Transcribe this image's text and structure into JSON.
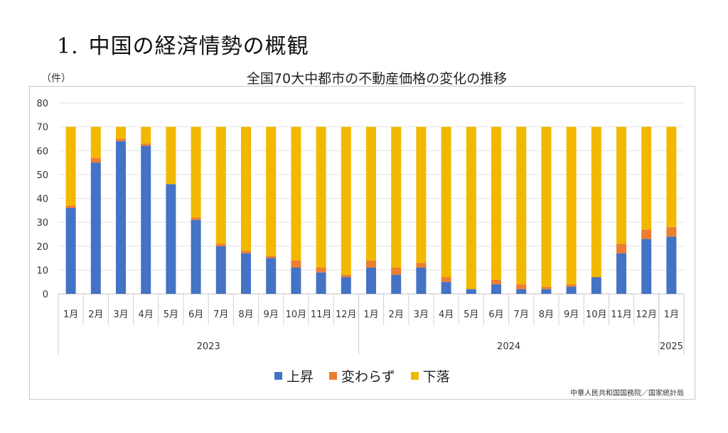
{
  "heading": {
    "number": "1.",
    "text": "中国の経済情勢の概観"
  },
  "chart_data": {
    "type": "bar",
    "stacked": true,
    "title": "全国70大中都市の不動産価格の変化の推移",
    "ylabel": "（件）",
    "ylim": [
      0,
      80
    ],
    "yticks": [
      0,
      10,
      20,
      30,
      40,
      50,
      60,
      70,
      80
    ],
    "grid": true,
    "legend_position": "bottom",
    "categories": [
      "1月",
      "2月",
      "3月",
      "4月",
      "5月",
      "6月",
      "7月",
      "8月",
      "9月",
      "10月",
      "11月",
      "12月",
      "1月",
      "2月",
      "3月",
      "4月",
      "5月",
      "6月",
      "7月",
      "8月",
      "9月",
      "10月",
      "11月",
      "12月",
      "1月"
    ],
    "year_groups": [
      {
        "label": "2023",
        "count": 12
      },
      {
        "label": "2024",
        "count": 12
      },
      {
        "label": "2025",
        "count": 1
      }
    ],
    "series": [
      {
        "name": "上昇",
        "color": "#4472C4",
        "values": [
          36,
          55,
          64,
          62,
          46,
          31,
          20,
          17,
          15,
          11,
          9,
          7,
          11,
          8,
          11,
          5,
          2,
          4,
          2,
          2,
          3,
          7,
          17,
          23,
          24
        ]
      },
      {
        "name": "変わらず",
        "color": "#ED7D31",
        "values": [
          1,
          2,
          1,
          1,
          0,
          1,
          1,
          1,
          1,
          3,
          2,
          1,
          3,
          3,
          2,
          2,
          0,
          2,
          2,
          1,
          1,
          0,
          4,
          4,
          4
        ]
      },
      {
        "name": "下落",
        "color": "#F2B800",
        "values": [
          33,
          13,
          5,
          7,
          24,
          38,
          49,
          52,
          54,
          56,
          59,
          62,
          56,
          59,
          57,
          63,
          68,
          64,
          66,
          67,
          66,
          63,
          49,
          43,
          42
        ]
      }
    ]
  },
  "source": "中華人民共和国国務院／国家統計局"
}
